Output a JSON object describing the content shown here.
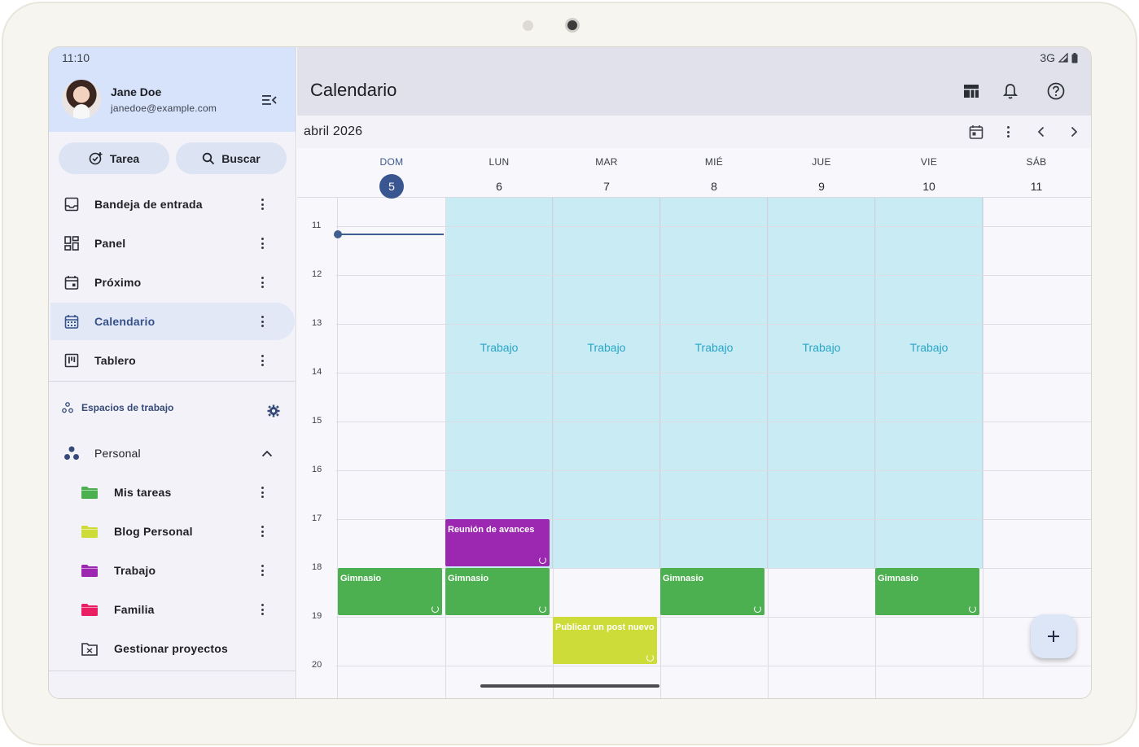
{
  "status_bar": {
    "time": "11:10",
    "network": "3G"
  },
  "user": {
    "name": "Jane Doe",
    "email": "janedoe@example.com"
  },
  "quick_actions": {
    "task_label": "Tarea",
    "search_label": "Buscar"
  },
  "nav": [
    {
      "label": "Bandeja de entrada",
      "icon": "inbox-icon"
    },
    {
      "label": "Panel",
      "icon": "dashboard-icon"
    },
    {
      "label": "Próximo",
      "icon": "upcoming-icon"
    },
    {
      "label": "Calendario",
      "icon": "calendar-icon",
      "active": true
    },
    {
      "label": "Tablero",
      "icon": "board-icon"
    }
  ],
  "workspaces": {
    "header": "Espacios de trabajo",
    "personal": {
      "label": "Personal",
      "expanded": true
    },
    "projects": [
      {
        "label": "Mis tareas",
        "color": "#4caf50"
      },
      {
        "label": "Blog Personal",
        "color": "#cddc39"
      },
      {
        "label": "Trabajo",
        "color": "#9c27b0"
      },
      {
        "label": "Familia",
        "color": "#e91e63"
      }
    ],
    "manage_label": "Gestionar proyectos"
  },
  "header": {
    "title": "Calendario"
  },
  "calendar": {
    "month_label": "abril 2026",
    "days": [
      {
        "name": "DOM",
        "num": "5",
        "today": true
      },
      {
        "name": "LUN",
        "num": "6"
      },
      {
        "name": "MAR",
        "num": "7"
      },
      {
        "name": "MIÉ",
        "num": "8"
      },
      {
        "name": "JUE",
        "num": "9"
      },
      {
        "name": "VIE",
        "num": "10"
      },
      {
        "name": "SÁB",
        "num": "11"
      }
    ],
    "hours": [
      "11",
      "12",
      "13",
      "14",
      "15",
      "16",
      "17",
      "18",
      "19",
      "20"
    ],
    "work_block_label": "Trabajo",
    "events": {
      "meeting": "Reunión de avances",
      "gym": "Gimnasio",
      "post": "Publicar un post nuevo"
    },
    "colors": {
      "work": "#c8ebf4",
      "gym": "#4caf50",
      "meeting": "#9c27b0",
      "post": "#cddc39",
      "today": "#3a5690"
    }
  }
}
